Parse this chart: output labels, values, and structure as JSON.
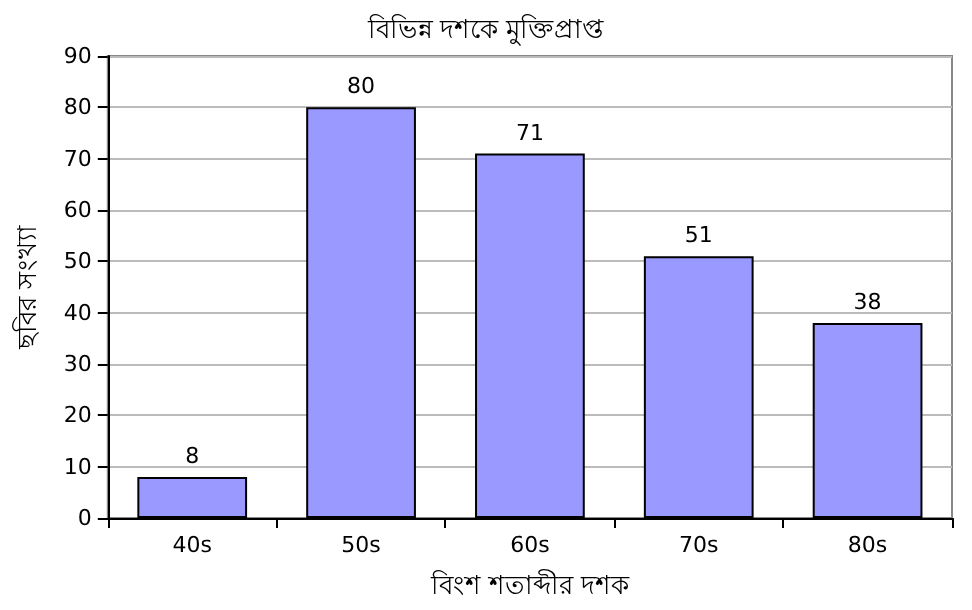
{
  "chart_data": {
    "type": "bar",
    "title": "বিভিন্ন দশকে মুক্তিপ্রাপ্ত",
    "xlabel": "বিংশ শতাব্দীর দশক",
    "ylabel": "ছবির সংখ্যা",
    "categories": [
      "40s",
      "50s",
      "60s",
      "70s",
      "80s"
    ],
    "values": [
      8,
      80,
      71,
      51,
      38
    ],
    "color": "#9999ff",
    "ylim": [
      0,
      90
    ],
    "yticks": [
      0,
      10,
      20,
      30,
      40,
      50,
      60,
      70,
      80,
      90
    ],
    "grid": "y",
    "data_labels": true
  }
}
